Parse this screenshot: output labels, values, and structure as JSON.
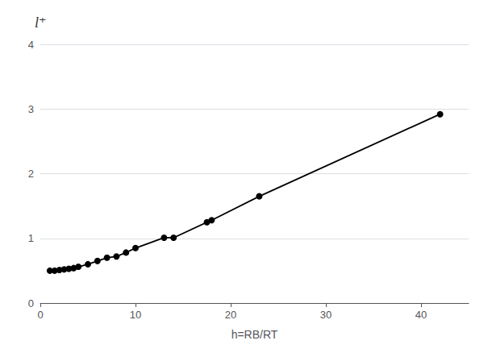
{
  "chart_data": {
    "type": "line",
    "title": "l⁺",
    "xlabel": "h=RB/RT",
    "x": [
      1,
      1.5,
      2,
      2.5,
      3,
      3.5,
      4,
      5,
      6,
      7,
      8,
      9,
      10,
      13,
      14,
      17.5,
      18,
      23,
      42
    ],
    "values": [
      0.5,
      0.5,
      0.51,
      0.52,
      0.53,
      0.54,
      0.56,
      0.6,
      0.65,
      0.7,
      0.72,
      0.78,
      0.85,
      1.01,
      1.01,
      1.25,
      1.28,
      1.65,
      2.92
    ],
    "color": "#000000",
    "marker": "circle",
    "xlim": [
      0,
      45
    ],
    "ylim": [
      0,
      4
    ],
    "xticks": [
      0,
      10,
      20,
      30,
      40
    ],
    "yticks": [
      0,
      1,
      2,
      3,
      4
    ],
    "grid": true
  }
}
